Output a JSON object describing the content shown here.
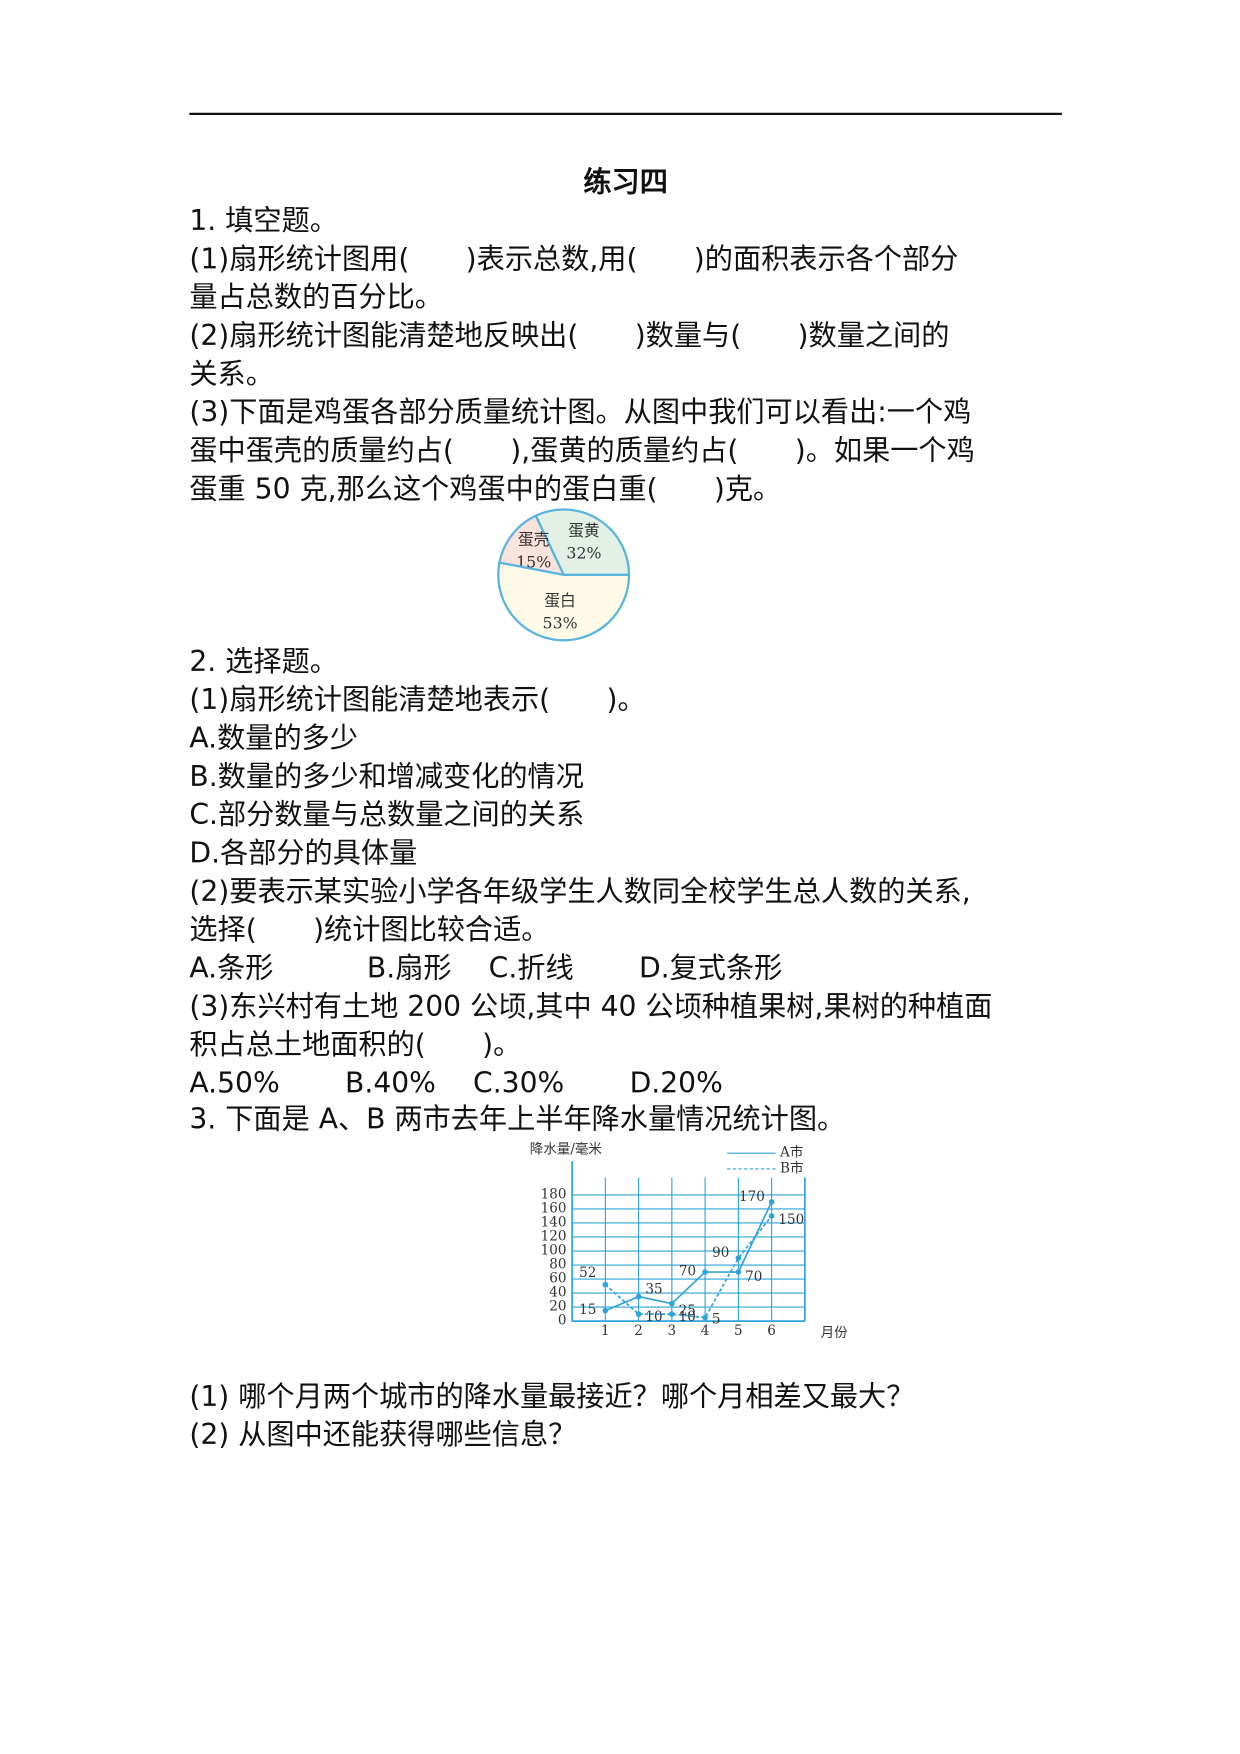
{
  "title": "练习四",
  "q1": {
    "heading": "1. 填空题。",
    "lines": [
      "(1)扇形统计图用(　　)表示总数,用(　　)的面积表示各个部分",
      "量占总数的百分比。",
      "(2)扇形统计图能清楚地反映出(　　)数量与(　　)数量之间的",
      "关系。",
      "(3)下面是鸡蛋各部分质量统计图。从图中我们可以看出:一个鸡",
      "蛋中蛋壳的质量约占(　　),蛋黄的质量约占(　　)。如果一个鸡",
      "蛋重 50 克,那么这个鸡蛋中的蛋白重(　　)克。"
    ]
  },
  "q2": {
    "heading": "2. 选择题。",
    "lines": [
      "(1)扇形统计图能清楚地表示(　　)。",
      "A.数量的多少",
      "B.数量的多少和增减变化的情况",
      "C.部分数量与总数量之间的关系",
      "D.各部分的具体量",
      "(2)要表示某实验小学各年级学生人数同全校学生总人数的关系,",
      "选择(　　)统计图比较合适。",
      "A.条形　　　 B.扇形　 C.折线　　 D.复式条形",
      "(3)东兴村有土地 200 公顷,其中 40 公顷种植果树,果树的种植面",
      "积占总土地面积的(　　)。",
      "A.50%　　 B.40%　 C.30%　　 D.20%"
    ]
  },
  "q3": {
    "heading": "3. 下面是 A、B 两市去年上半年降水量情况统计图。",
    "questions": [
      "(1) 哪个月两个城市的降水量最接近？哪个月相差又最大？",
      "(2) 从图中还能获得哪些信息？"
    ]
  },
  "chart_data": [
    {
      "type": "pie",
      "categories": [
        "蛋黄",
        "蛋壳",
        "蛋白"
      ],
      "values": [
        32,
        15,
        53
      ],
      "value_labels": [
        "32%",
        "15%",
        "53%"
      ],
      "colors": [
        "#e2f0e6",
        "#fbe2da",
        "#fdfbe8"
      ],
      "stroke": "#5ab4de"
    },
    {
      "type": "line",
      "x_label": "月份",
      "y_label": "降水量/毫米",
      "x": [
        1,
        2,
        3,
        4,
        5,
        6
      ],
      "xlim": [
        0,
        7
      ],
      "xticks": [
        1,
        2,
        3,
        4,
        5,
        6
      ],
      "ylim": [
        0,
        200
      ],
      "yticks": [
        0,
        20,
        40,
        60,
        80,
        100,
        120,
        140,
        160,
        180
      ],
      "grid": true,
      "legend": "upper right",
      "series": [
        {
          "name": "A市",
          "color": "#2fa3da",
          "dash": false,
          "values": [
            15,
            35,
            25,
            70,
            70,
            170
          ]
        },
        {
          "name": "B市",
          "color": "#2fa3da",
          "dash": true,
          "values": [
            52,
            10,
            10,
            5,
            90,
            150
          ]
        }
      ]
    }
  ]
}
